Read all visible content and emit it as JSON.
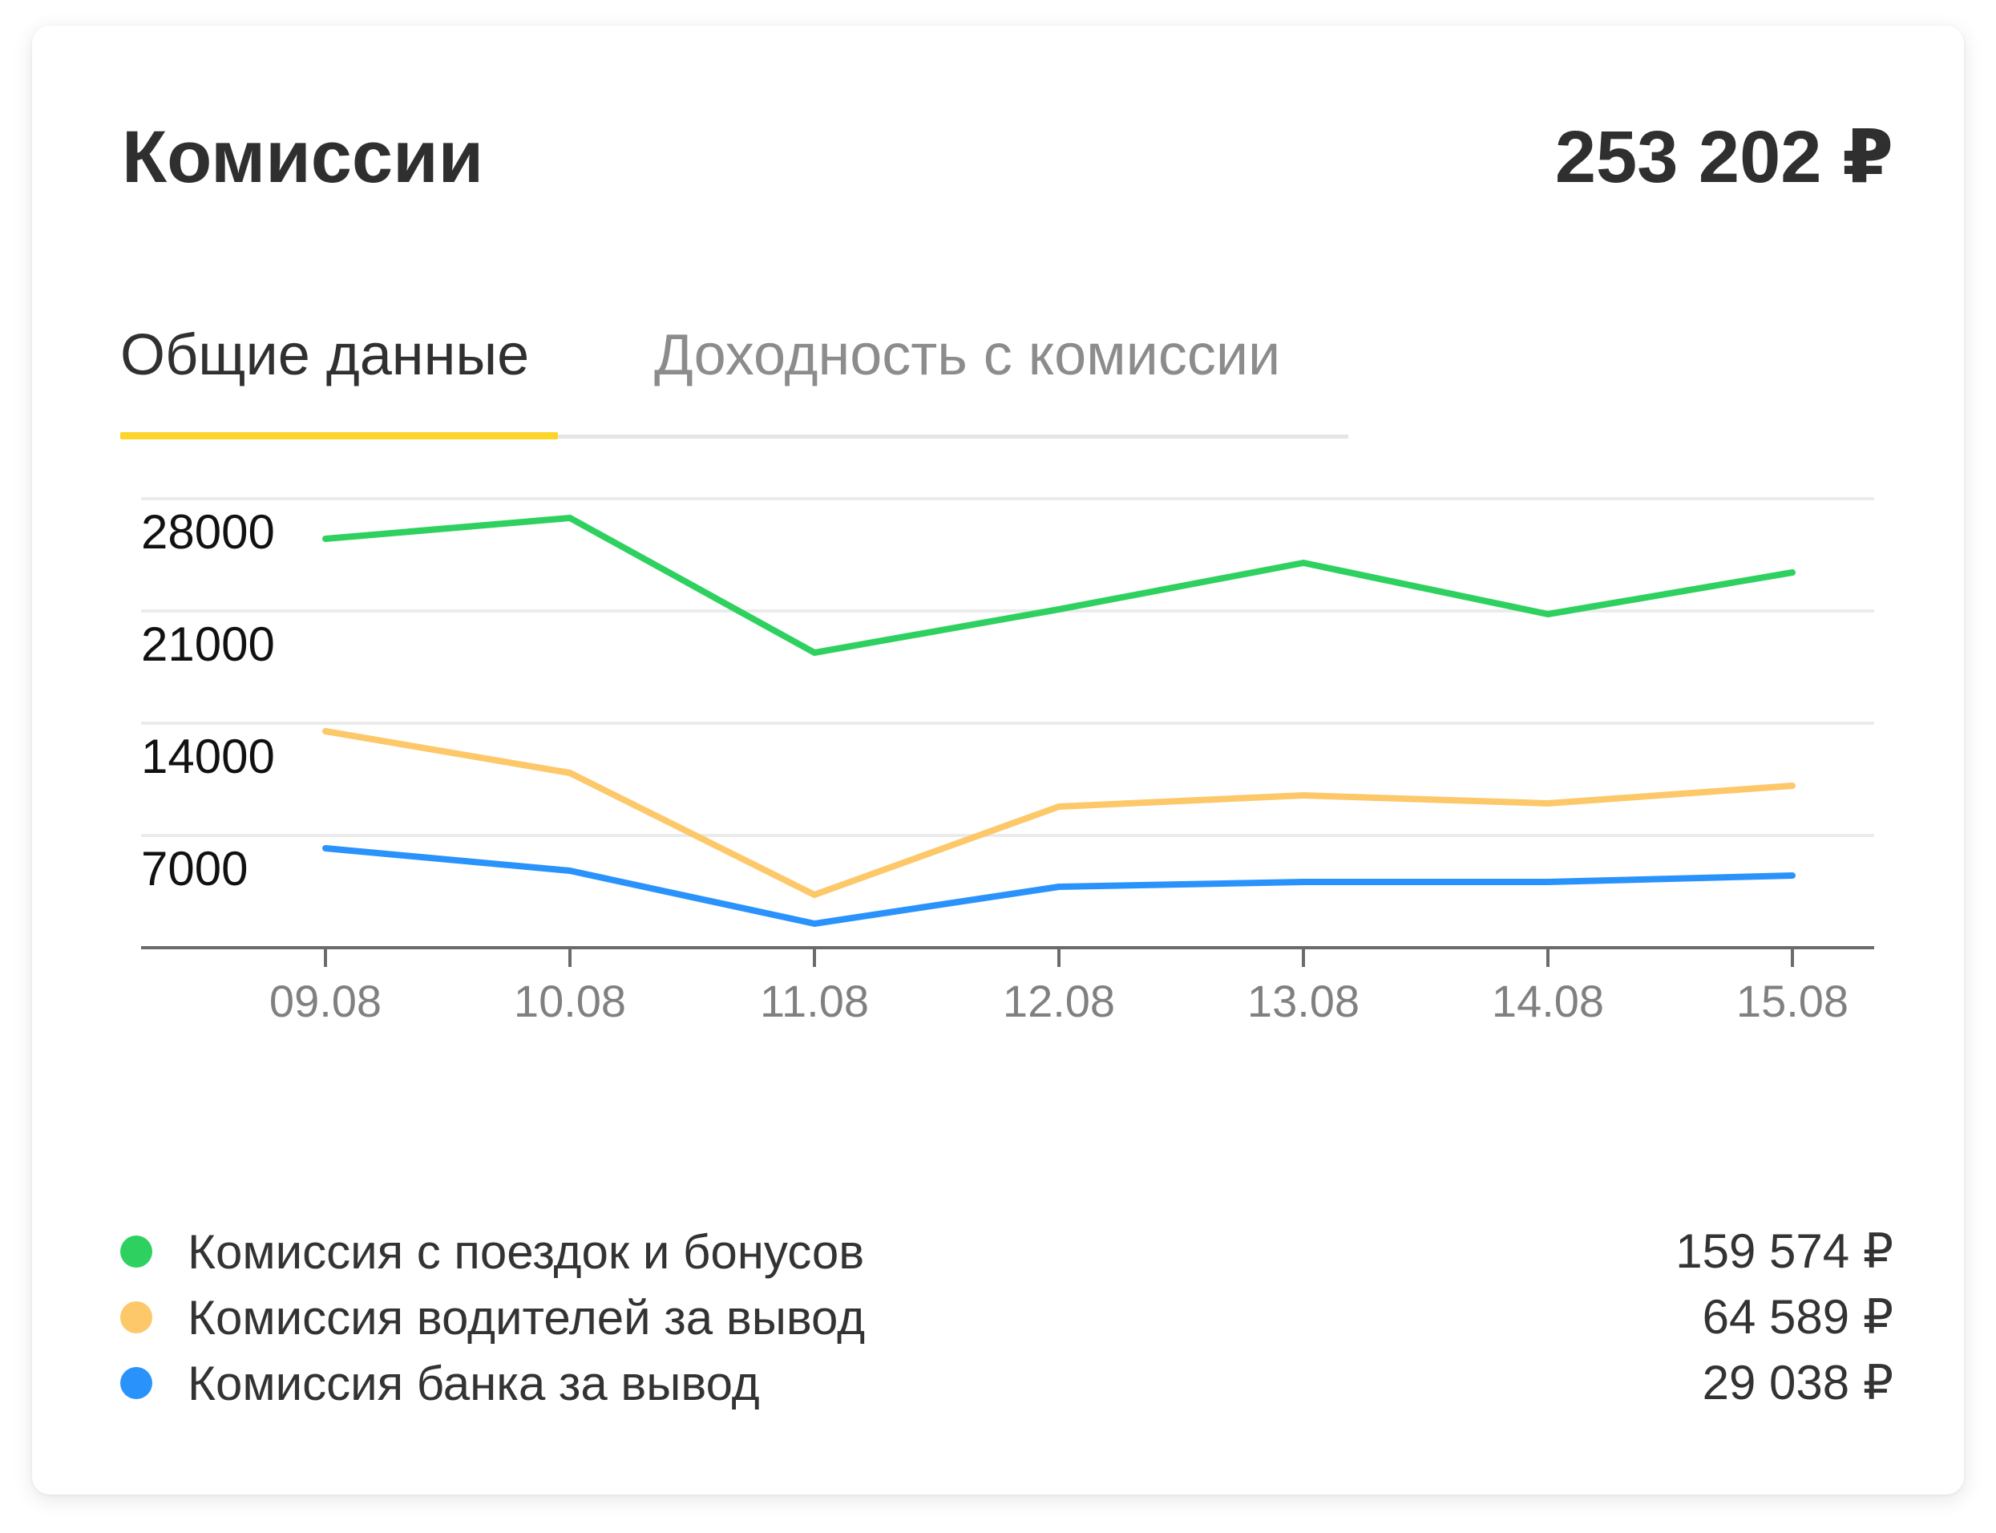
{
  "header": {
    "title": "Комиссии",
    "total": "253 202 ₽"
  },
  "tabs": [
    {
      "label": "Общие данные",
      "active": true
    },
    {
      "label": "Доходность с комиссии",
      "active": false
    }
  ],
  "colors": {
    "green": "#2ed15f",
    "orange": "#fdc86a",
    "blue": "#2a93fb",
    "tab_accent": "#fcd42a"
  },
  "chart_data": {
    "type": "line",
    "categories": [
      "09.08",
      "10.08",
      "11.08",
      "12.08",
      "13.08",
      "14.08",
      "15.08"
    ],
    "y_ticks": [
      7000,
      14000,
      21000,
      28000
    ],
    "ylim": [
      0,
      28000
    ],
    "grid": true,
    "series": [
      {
        "name": "Комиссия с поездок и бонусов",
        "color": "#2ed15f",
        "values": [
          25500,
          26800,
          18400,
          21100,
          24000,
          20800,
          23400
        ]
      },
      {
        "name": "Комиссия водителей за вывод",
        "color": "#fdc86a",
        "values": [
          13500,
          10900,
          3300,
          8800,
          9500,
          9000,
          10100
        ]
      },
      {
        "name": "Комиссия банка за вывод",
        "color": "#2a93fb",
        "values": [
          6200,
          4800,
          1500,
          3800,
          4100,
          4100,
          4500
        ]
      }
    ]
  },
  "legend": [
    {
      "label": "Комиссия с поездок и бонусов",
      "value": "159 574 ₽",
      "color": "#2ed15f"
    },
    {
      "label": "Комиссия водителей за вывод",
      "value": "64 589 ₽",
      "color": "#fdc86a"
    },
    {
      "label": "Комиссия банка за вывод",
      "value": "29 038 ₽",
      "color": "#2a93fb"
    }
  ]
}
